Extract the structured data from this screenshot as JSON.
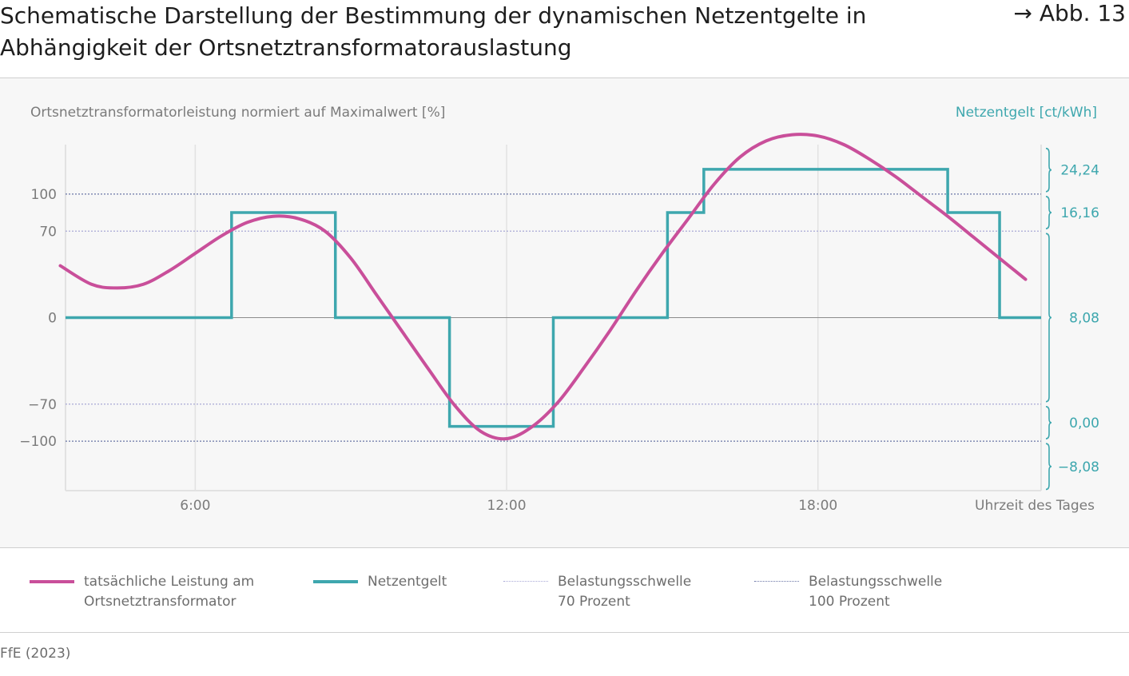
{
  "figure": {
    "title": "Schematische Darstellung der Bestimmung der dynamischen Netzentgelte in Abhängigkeit der Ortsnetztransformatorauslastung",
    "ref": "→ Abb. 13",
    "source": "FfE (2023)"
  },
  "colors": {
    "power": "#c94f9a",
    "fee": "#3ea7ae",
    "threshold70": "#a9a9d6",
    "threshold100": "#6a75a6",
    "grid": "#e2e2e2",
    "zero": "#8c8c8c",
    "background": "#f7f7f7"
  },
  "legend": [
    {
      "key": "power",
      "label": "tatsächliche Leistung am\nOrtsnetztransformator",
      "style": "solid-thick",
      "color": "#c94f9a"
    },
    {
      "key": "fee",
      "label": "Netzentgelt",
      "style": "solid-thick",
      "color": "#3ea7ae"
    },
    {
      "key": "t70",
      "label": "Belastungsschwelle\n70 Prozent",
      "style": "dotted",
      "color": "#a9a9d6"
    },
    {
      "key": "t100",
      "label": "Belastungsschwelle\n100 Prozent",
      "style": "dotted",
      "color": "#6a75a6"
    }
  ],
  "chart_data": {
    "type": "line",
    "xlabel": "Uhrzeit des Tages",
    "ylabel": "Ortsnetztransformatorleistung normiert auf Maximalwert [%]",
    "ylabel_right": "Netzentgelt [ct/kWh]",
    "x_unit": "hours",
    "xlim": [
      3.5,
      22.3
    ],
    "ylim": [
      -140,
      140
    ],
    "x_ticks": [
      {
        "value": 6,
        "label": "6:00"
      },
      {
        "value": 12,
        "label": "12:00"
      },
      {
        "value": 18,
        "label": "18:00"
      }
    ],
    "y_ticks": [
      {
        "value": 100,
        "label": "100"
      },
      {
        "value": 70,
        "label": "70"
      },
      {
        "value": 0,
        "label": "0"
      },
      {
        "value": -70,
        "label": "−70"
      },
      {
        "value": -100,
        "label": "−100"
      }
    ],
    "thresholds": [
      {
        "value": 70,
        "kind": "70"
      },
      {
        "value": -70,
        "kind": "70"
      },
      {
        "value": 100,
        "kind": "100"
      },
      {
        "value": -100,
        "kind": "100"
      }
    ],
    "grid_x": true,
    "legend_position": "bottom",
    "series": [
      {
        "name": "tatsächliche Leistung am Ortsnetztransformator",
        "key": "power",
        "x": [
          3.4,
          4.0,
          4.5,
          5.0,
          5.5,
          6.0,
          6.5,
          7.0,
          7.5,
          8.0,
          8.5,
          9.0,
          9.5,
          10.0,
          10.5,
          11.0,
          11.5,
          12.0,
          12.5,
          13.0,
          13.5,
          14.0,
          14.5,
          15.0,
          15.5,
          16.0,
          16.5,
          17.0,
          17.5,
          18.0,
          18.5,
          19.0,
          19.5,
          20.0,
          20.5,
          21.0,
          21.5,
          22.0
        ],
        "y": [
          42,
          27,
          24,
          27,
          38,
          52,
          66,
          77,
          82,
          80,
          70,
          48,
          18,
          -12,
          -42,
          -71,
          -92,
          -98,
          -88,
          -68,
          -40,
          -10,
          22,
          52,
          80,
          108,
          130,
          143,
          148,
          147,
          140,
          128,
          114,
          98,
          82,
          65,
          48,
          31
        ]
      },
      {
        "name": "Netzentgelt",
        "key": "fee",
        "step": "post",
        "x": [
          3.5,
          6.7,
          8.7,
          10.9,
          12.9,
          15.1,
          15.8,
          20.5,
          21.5,
          22.3
        ],
        "y": [
          0,
          85,
          0,
          -88,
          0,
          85,
          120,
          85,
          0,
          0
        ]
      }
    ],
    "fee_levels": [
      {
        "label": "24,24",
        "from": 102,
        "to": 137
      },
      {
        "label": "16,16",
        "from": 72,
        "to": 98
      },
      {
        "label": "8,08",
        "from": -68,
        "to": 68
      },
      {
        "label": "0,00",
        "from": -98,
        "to": -72
      },
      {
        "label": "−8,08",
        "from": -139,
        "to": -102
      }
    ]
  }
}
